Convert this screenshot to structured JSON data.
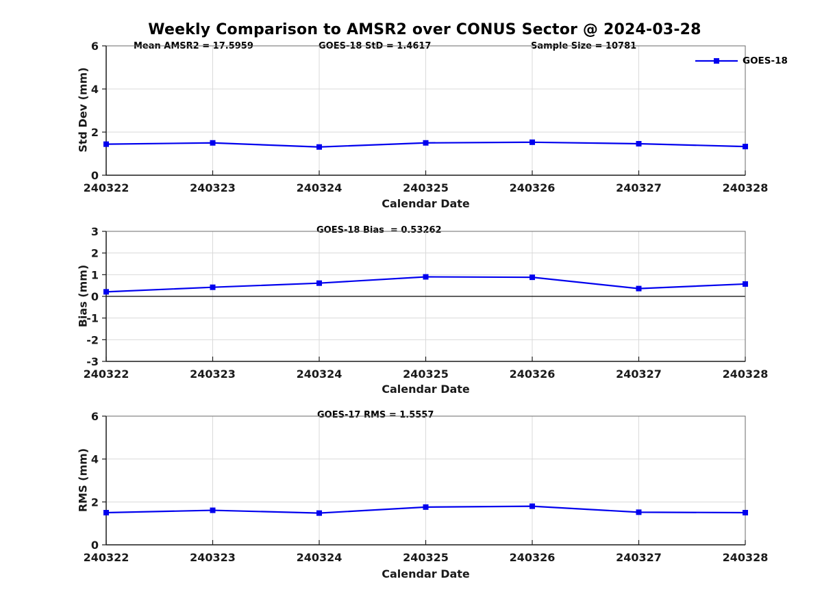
{
  "title": "Weekly Comparison to AMSR2 over CONUS Sector @ 2024-03-28",
  "legend": {
    "label": "GOES-18",
    "color": "#0000EE"
  },
  "chart_data": [
    {
      "type": "line",
      "subplot": "std-dev",
      "categories": [
        "240322",
        "240323",
        "240324",
        "240325",
        "240326",
        "240327",
        "240328"
      ],
      "series": [
        {
          "name": "GOES-18",
          "values": [
            1.44,
            1.5,
            1.31,
            1.5,
            1.53,
            1.46,
            1.33
          ]
        }
      ],
      "ylabel": "Std Dev (mm)",
      "xlabel": "Calendar Date",
      "ylim": [
        0,
        6
      ],
      "yticks": [
        0,
        2,
        4,
        6
      ],
      "annotations": [
        "Mean AMSR2 = 17.5959",
        "GOES-18 StD = 1.4617",
        "Sample Size = 10781"
      ],
      "grid": true,
      "legend_position": "top-right-outside",
      "line_color": "#0000EE",
      "marker": "square"
    },
    {
      "type": "line",
      "subplot": "bias",
      "categories": [
        "240322",
        "240323",
        "240324",
        "240325",
        "240326",
        "240327",
        "240328"
      ],
      "values": [
        0.21,
        0.42,
        0.61,
        0.9,
        0.88,
        0.36,
        0.57
      ],
      "ylabel": "Bias (mm)",
      "xlabel": "Calendar Date",
      "ylim": [
        -3,
        3
      ],
      "yticks": [
        3,
        2,
        1,
        0,
        -1,
        -2,
        -3
      ],
      "zero_line": true,
      "annotations": [
        "GOES-18 Bias  = 0.53262"
      ],
      "grid": true,
      "line_color": "#0000EE",
      "marker": "square"
    },
    {
      "type": "line",
      "subplot": "rms",
      "categories": [
        "240322",
        "240323",
        "240324",
        "240325",
        "240326",
        "240327",
        "240328"
      ],
      "values": [
        1.5,
        1.61,
        1.48,
        1.76,
        1.8,
        1.52,
        1.5
      ],
      "ylabel": "RMS (mm)",
      "xlabel": "Calendar Date",
      "ylim": [
        0,
        6
      ],
      "yticks": [
        0,
        2,
        4,
        6
      ],
      "annotations": [
        "GOES-17 RMS = 1.5557"
      ],
      "grid": true,
      "line_color": "#0000EE",
      "marker": "square"
    }
  ]
}
